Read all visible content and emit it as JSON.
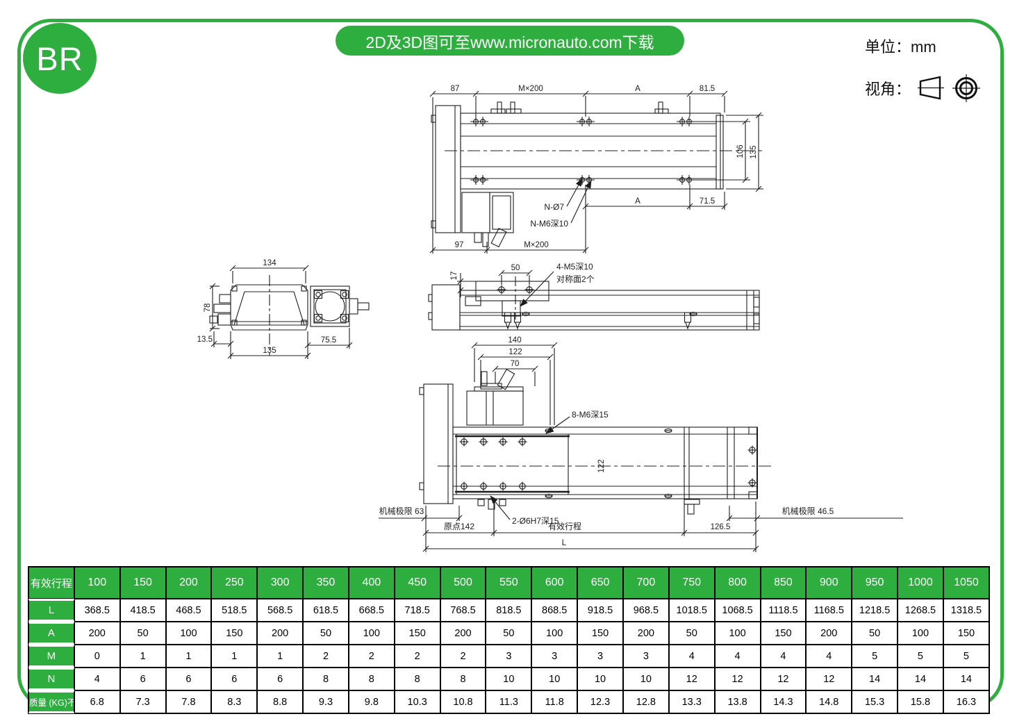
{
  "colors": {
    "accent_green": "#2eae3e",
    "line_black": "#1c1c1c"
  },
  "header": {
    "logo": "BR",
    "banner": "2D及3D图可至www.micronauto.com下载",
    "unit": "单位：mm",
    "view_angle": "视角："
  },
  "drawings": {
    "top_view": {
      "dim_87": "87",
      "dim_m200_top": "M×200",
      "dim_a_top": "A",
      "dim_81_5": "81.5",
      "dim_106": "106",
      "dim_135": "135",
      "dim_a_right": "A",
      "dim_71_5": "71.5",
      "dim_97": "97",
      "dim_m200_bottom": "M×200",
      "label_n_holes": "N-Ø7",
      "label_n_threads": "N-M6深10"
    },
    "end_view": {
      "dim_134": "134",
      "dim_78": "78",
      "dim_13_5": "13.5",
      "dim_135": "135",
      "dim_75_5": "75.5"
    },
    "side_view": {
      "dim_17": "17",
      "dim_50": "50",
      "label_m5": "4-M5深10",
      "label_sym": "对称面2个"
    },
    "bottom_view": {
      "dim_140": "140",
      "dim_122": "122",
      "dim_70": "70",
      "dim_122_v": "122",
      "label_m6": "8-M6深15",
      "label_pins": "2-Ø6H7深15",
      "label_limit_left": "机械极限 63",
      "label_limit_right": "机械极限 46.5",
      "label_origin": "原点142",
      "label_stroke": "有效行程",
      "dim_126_5": "126.5",
      "dim_l": "L"
    }
  },
  "table": {
    "header_label": "有效行程",
    "columns": [
      "100",
      "150",
      "200",
      "250",
      "300",
      "350",
      "400",
      "450",
      "500",
      "550",
      "600",
      "650",
      "700",
      "750",
      "800",
      "850",
      "900",
      "950",
      "1000",
      "1050"
    ],
    "rows": [
      {
        "label": "L",
        "values": [
          "368.5",
          "418.5",
          "468.5",
          "518.5",
          "568.5",
          "618.5",
          "668.5",
          "718.5",
          "768.5",
          "818.5",
          "868.5",
          "918.5",
          "968.5",
          "1018.5",
          "1068.5",
          "1118.5",
          "1168.5",
          "1218.5",
          "1268.5",
          "1318.5"
        ]
      },
      {
        "label": "A",
        "values": [
          "200",
          "50",
          "100",
          "150",
          "200",
          "50",
          "100",
          "150",
          "200",
          "50",
          "100",
          "150",
          "200",
          "50",
          "100",
          "150",
          "200",
          "50",
          "100",
          "150"
        ]
      },
      {
        "label": "M",
        "values": [
          "0",
          "1",
          "1",
          "1",
          "1",
          "2",
          "2",
          "2",
          "2",
          "3",
          "3",
          "3",
          "3",
          "4",
          "4",
          "4",
          "4",
          "5",
          "5",
          "5"
        ]
      },
      {
        "label": "N",
        "values": [
          "4",
          "6",
          "6",
          "6",
          "6",
          "8",
          "8",
          "8",
          "8",
          "10",
          "10",
          "10",
          "10",
          "12",
          "12",
          "12",
          "12",
          "14",
          "14",
          "14"
        ]
      },
      {
        "label": "质量 (KG)不含电机",
        "values": [
          "6.8",
          "7.3",
          "7.8",
          "8.3",
          "8.8",
          "9.3",
          "9.8",
          "10.3",
          "10.8",
          "11.3",
          "11.8",
          "12.3",
          "12.8",
          "13.3",
          "13.8",
          "14.3",
          "14.8",
          "15.3",
          "15.8",
          "16.3"
        ]
      }
    ]
  }
}
